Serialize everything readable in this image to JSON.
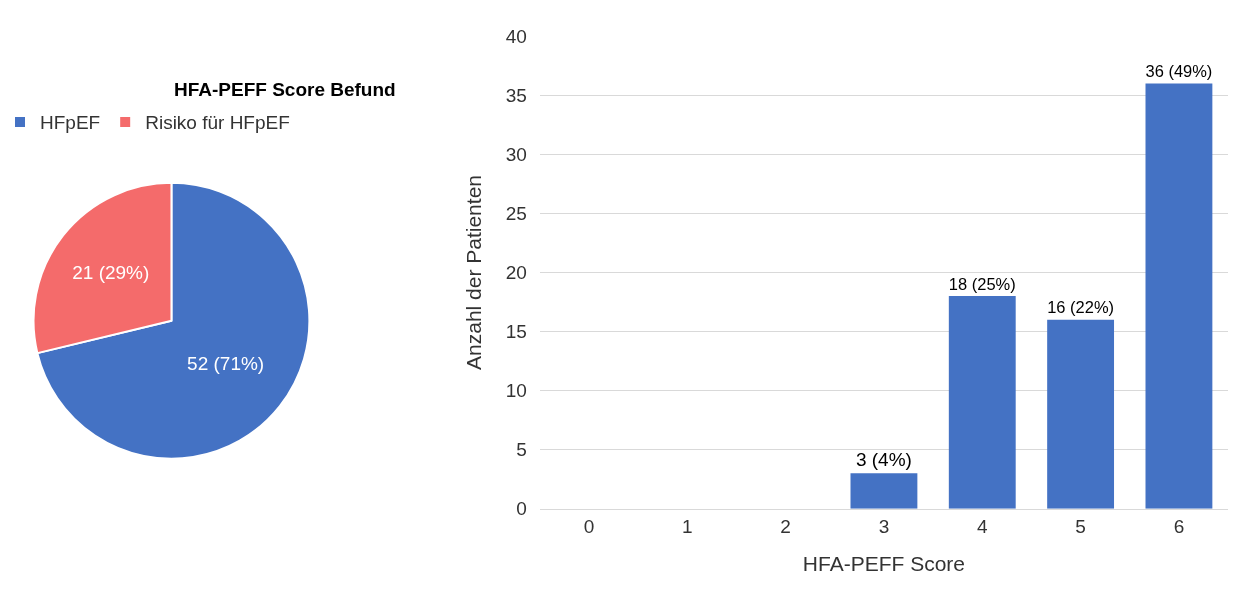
{
  "chart_data": [
    {
      "type": "pie",
      "title": "HFA-PEFF Score Befund",
      "categories": [
        "HFpEF",
        "Risiko für HFpEF"
      ],
      "values": [
        52,
        21
      ],
      "colors": [
        "#4472c4",
        "#f46b6b"
      ],
      "value_labels": [
        "52 (71%)",
        "21 (29%)"
      ],
      "legend": "top"
    },
    {
      "type": "bar",
      "xlabel": "HFA-PEFF Score",
      "ylabel": "Anzahl der Patienten",
      "categories": [
        "0",
        "1",
        "2",
        "3",
        "4",
        "5",
        "6"
      ],
      "series": [
        {
          "color": "#4472c4",
          "values": [
            0,
            0,
            0,
            3,
            18,
            16,
            36
          ]
        }
      ],
      "value_labels": [
        null,
        null,
        null,
        "3 (4%)",
        "18 (25%)",
        "16 (22%)",
        "36 (49%)"
      ],
      "ylim": [
        0,
        40
      ],
      "yticks": [
        0,
        5,
        10,
        15,
        20,
        25,
        30,
        35,
        40
      ],
      "grid": "y"
    }
  ]
}
